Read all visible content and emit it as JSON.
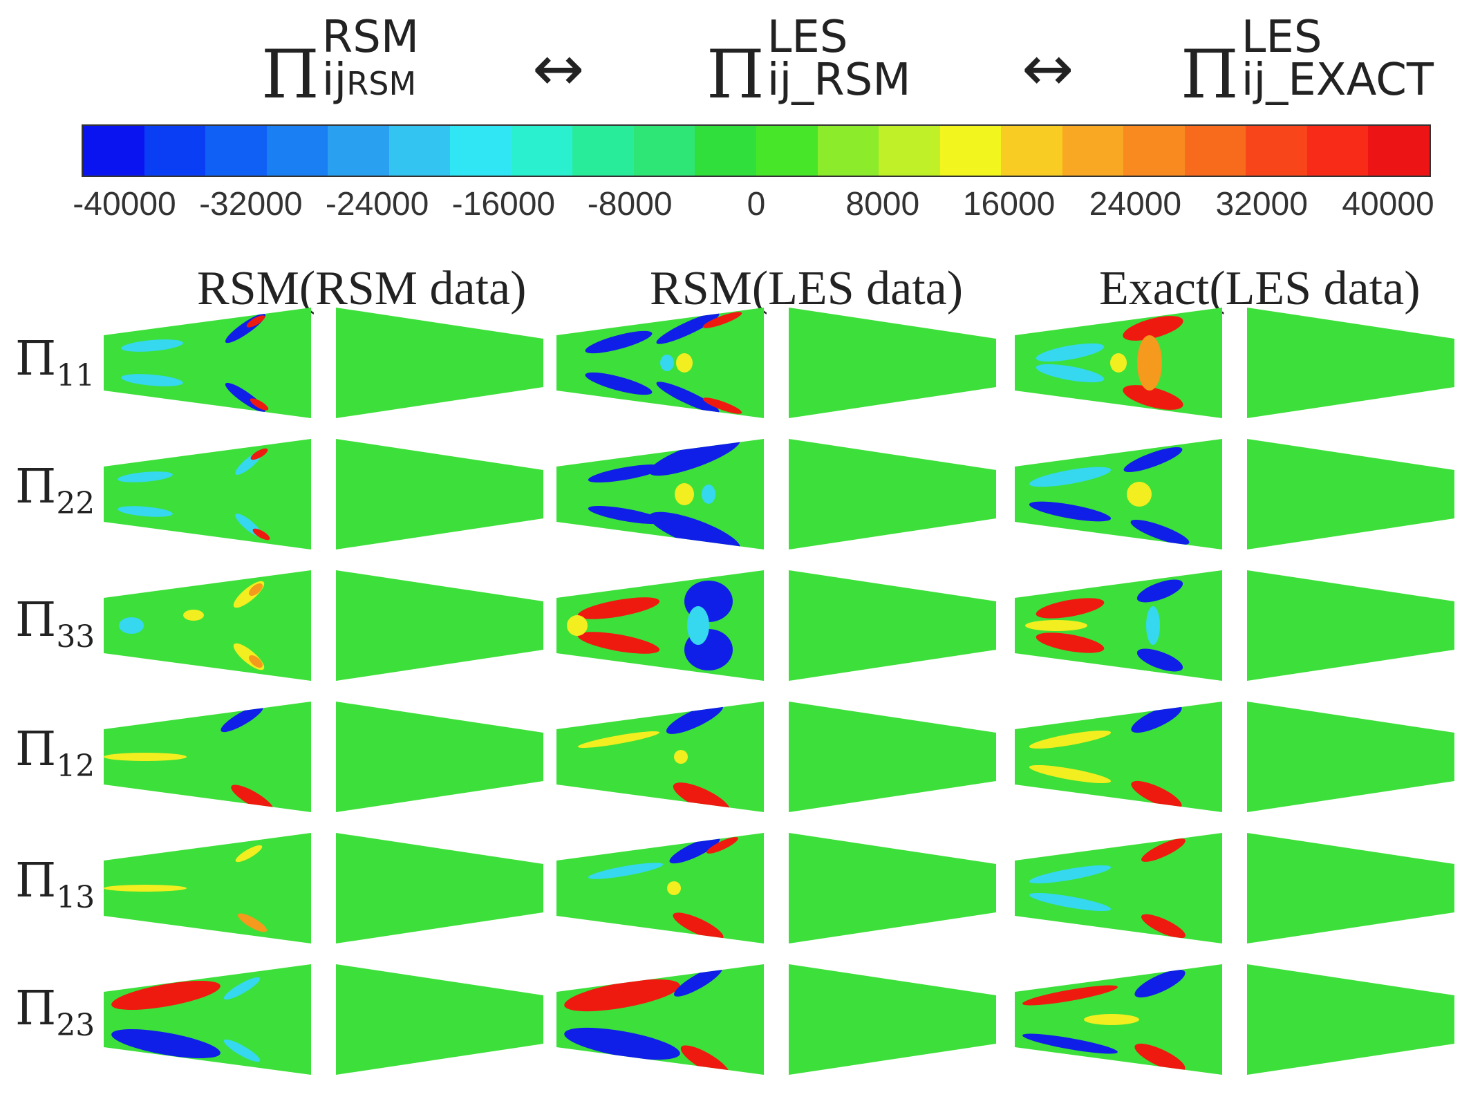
{
  "header": {
    "left": {
      "symbol": "Π",
      "sup": "RSM",
      "sub": "ij",
      "sub2": "RSM"
    },
    "arrow1": "↔",
    "middle": {
      "symbol": "Π",
      "sup": "LES",
      "sub": "ij_RSM"
    },
    "arrow2": "↔",
    "right": {
      "symbol": "Π",
      "sup": "LES",
      "sub": "ij_EXACT"
    }
  },
  "colorbar": {
    "colors": [
      "#0a14f0",
      "#0a3ef5",
      "#1060f5",
      "#1a7ff2",
      "#2aa0f0",
      "#34c4f2",
      "#30e6f5",
      "#2bf0d0",
      "#28ec9a",
      "#2ee676",
      "#30de3c",
      "#48e628",
      "#8ceb2a",
      "#c0f028",
      "#f2f51e",
      "#f8cc22",
      "#f8a822",
      "#f88a20",
      "#f86a1c",
      "#f8461a",
      "#f82a18",
      "#ec1414"
    ],
    "tick_labels": [
      "-40000",
      "-32000",
      "-24000",
      "-16000",
      "-8000",
      "0",
      "8000",
      "16000",
      "24000",
      "32000",
      "40000"
    ]
  },
  "columns": [
    "RSM(RSM data)",
    "RSM(LES data)",
    "Exact(LES data)"
  ],
  "rows": [
    {
      "symbol": "Π",
      "index": "11"
    },
    {
      "symbol": "Π",
      "index": "22"
    },
    {
      "symbol": "Π",
      "index": "33"
    },
    {
      "symbol": "Π",
      "index": "12"
    },
    {
      "symbol": "Π",
      "index": "13"
    },
    {
      "symbol": "Π",
      "index": "23"
    }
  ],
  "colors": {
    "field": "#3ddf3a",
    "red": "#ee1a10",
    "blue": "#0f1fe8",
    "cyan": "#35d8ee",
    "yellow": "#f2ee20",
    "orange": "#f59a1c"
  }
}
